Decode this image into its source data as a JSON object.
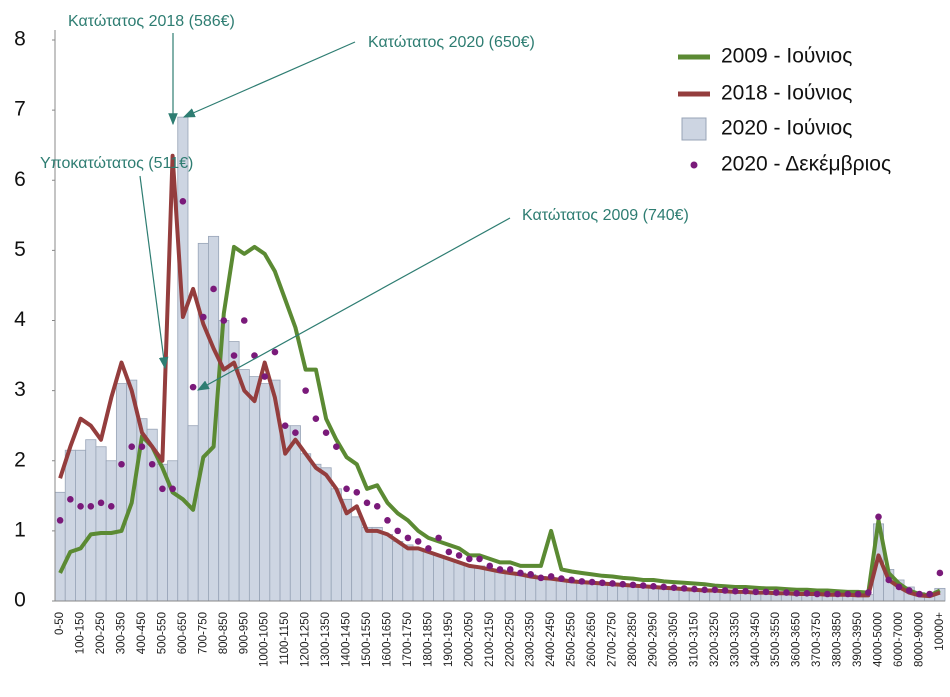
{
  "chart_data": {
    "type": "combo",
    "annotations": [
      "Κατώτατος 2018 (586€)",
      "Κατώτατος 2020 (650€)",
      "Υποκατώτατος (511€)",
      "Κατώτατος 2009 (740€)"
    ],
    "categories": [
      "0-50",
      null,
      "100-150",
      null,
      "200-250",
      null,
      "300-350",
      null,
      "400-450",
      null,
      "500-550",
      null,
      "600-650",
      null,
      "700-750",
      null,
      "800-850",
      null,
      "900-950",
      null,
      "1000-1050",
      null,
      "1100-1150",
      null,
      "1200-1250",
      null,
      "1300-1350",
      null,
      "1400-1450",
      null,
      "1500-1550",
      null,
      "1600-1650",
      null,
      "1700-1750",
      null,
      "1800-1850",
      null,
      "1900-1950",
      null,
      "2000-2050",
      null,
      "2100-2150",
      null,
      "2200-2250",
      null,
      "2300-2350",
      null,
      "2400-2450",
      null,
      "2500-2550",
      null,
      "2600-2650",
      null,
      "2700-2750",
      null,
      "2800-2850",
      null,
      "2900-2950",
      null,
      "3000-3050",
      null,
      "3100-3150",
      null,
      "3200-3250",
      null,
      "3300-3350",
      null,
      "3400-3450",
      null,
      "3500-3550",
      null,
      "3600-3650",
      null,
      "3700-3750",
      null,
      "3800-3850",
      null,
      "3900-3950",
      null,
      "4000-5000",
      null,
      "6000-7000",
      null,
      "8000-9000",
      null,
      "10000+"
    ],
    "series": [
      {
        "name": "2020 - Ιούνιος",
        "type": "bar",
        "color": "#cdd5e2",
        "values": [
          1.55,
          2.15,
          2.15,
          2.3,
          2.2,
          2.0,
          3.1,
          3.15,
          2.6,
          2.45,
          1.95,
          2.0,
          6.9,
          2.5,
          5.1,
          5.2,
          4.0,
          3.7,
          3.3,
          3.2,
          3.1,
          3.15,
          2.5,
          2.5,
          2.1,
          1.95,
          1.9,
          1.6,
          1.45,
          1.2,
          1.05,
          1.05,
          0.95,
          0.85,
          0.8,
          0.75,
          0.7,
          0.65,
          0.6,
          0.55,
          0.5,
          0.5,
          0.45,
          0.45,
          0.4,
          0.4,
          0.38,
          0.35,
          0.33,
          0.3,
          0.3,
          0.28,
          0.27,
          0.26,
          0.25,
          0.24,
          0.23,
          0.22,
          0.21,
          0.2,
          0.19,
          0.18,
          0.17,
          0.16,
          0.16,
          0.15,
          0.14,
          0.14,
          0.13,
          0.13,
          0.12,
          0.12,
          0.11,
          0.11,
          0.1,
          0.1,
          0.1,
          0.09,
          0.09,
          0.09,
          1.1,
          0.45,
          0.3,
          0.2,
          0.12,
          0.1,
          0.18
        ]
      },
      {
        "name": "2009 - Ιούνιος",
        "type": "line",
        "color": "#5b8a33",
        "values": [
          0.4,
          0.7,
          0.75,
          0.95,
          0.97,
          0.97,
          1.0,
          1.4,
          2.35,
          2.2,
          1.9,
          1.55,
          1.45,
          1.3,
          2.05,
          2.2,
          4.1,
          5.05,
          4.95,
          5.05,
          4.95,
          4.7,
          4.3,
          3.9,
          3.3,
          3.3,
          2.6,
          2.3,
          2.05,
          1.95,
          1.6,
          1.65,
          1.4,
          1.25,
          1.15,
          1.0,
          0.9,
          0.85,
          0.8,
          0.75,
          0.65,
          0.65,
          0.6,
          0.55,
          0.55,
          0.5,
          0.5,
          0.5,
          1.0,
          0.45,
          0.42,
          0.4,
          0.38,
          0.36,
          0.35,
          0.33,
          0.32,
          0.3,
          0.3,
          0.28,
          0.27,
          0.26,
          0.25,
          0.24,
          0.22,
          0.21,
          0.2,
          0.2,
          0.19,
          0.18,
          0.18,
          0.17,
          0.16,
          0.16,
          0.15,
          0.15,
          0.14,
          0.13,
          0.13,
          0.12,
          1.15,
          0.4,
          0.25,
          0.15,
          0.1,
          0.08,
          0.15
        ]
      },
      {
        "name": "2018 - Ιούνιος",
        "type": "line",
        "color": "#943d3d",
        "values": [
          1.75,
          2.2,
          2.6,
          2.5,
          2.3,
          2.9,
          3.4,
          3.0,
          2.4,
          2.2,
          2.0,
          6.35,
          4.05,
          4.45,
          3.95,
          3.6,
          3.3,
          3.4,
          3.0,
          2.85,
          3.4,
          2.9,
          2.1,
          2.3,
          2.1,
          1.9,
          1.8,
          1.6,
          1.25,
          1.35,
          1.0,
          1.0,
          0.95,
          0.85,
          0.75,
          0.75,
          0.7,
          0.65,
          0.6,
          0.55,
          0.5,
          0.48,
          0.45,
          0.42,
          0.4,
          0.38,
          0.35,
          0.33,
          0.32,
          0.3,
          0.28,
          0.27,
          0.26,
          0.25,
          0.24,
          0.23,
          0.22,
          0.21,
          0.2,
          0.19,
          0.18,
          0.17,
          0.16,
          0.15,
          0.15,
          0.14,
          0.13,
          0.13,
          0.12,
          0.12,
          0.11,
          0.11,
          0.1,
          0.1,
          0.1,
          0.09,
          0.09,
          0.09,
          0.08,
          0.08,
          0.65,
          0.3,
          0.2,
          0.12,
          0.08,
          0.07,
          0.12
        ]
      },
      {
        "name": "2020 - Δεκέμβριος",
        "type": "scatter",
        "color": "#7a1a7a",
        "values": [
          1.15,
          1.45,
          1.35,
          1.35,
          1.4,
          1.35,
          1.95,
          2.2,
          2.2,
          1.95,
          1.6,
          1.6,
          5.7,
          3.05,
          4.05,
          4.45,
          4.0,
          3.5,
          4.0,
          3.5,
          3.2,
          3.55,
          2.5,
          2.4,
          3.0,
          2.6,
          2.4,
          2.2,
          1.6,
          1.55,
          1.4,
          1.35,
          1.15,
          1.0,
          0.9,
          0.85,
          0.75,
          0.9,
          0.7,
          0.65,
          0.6,
          0.6,
          0.5,
          0.45,
          0.45,
          0.4,
          0.38,
          0.33,
          0.35,
          0.32,
          0.3,
          0.28,
          0.27,
          0.26,
          0.25,
          0.24,
          0.23,
          0.22,
          0.21,
          0.2,
          0.19,
          0.18,
          0.17,
          0.16,
          0.16,
          0.15,
          0.14,
          0.14,
          0.13,
          0.13,
          0.12,
          0.12,
          0.11,
          0.11,
          0.1,
          0.1,
          0.1,
          0.1,
          0.1,
          0.12,
          1.2,
          0.3,
          0.2,
          0.15,
          0.1,
          0.1,
          0.4
        ]
      }
    ],
    "ylim": [
      0,
      8
    ],
    "yticks": [
      0,
      1,
      2,
      3,
      4,
      5,
      6,
      7,
      8
    ],
    "grid": false,
    "legend": "upper right"
  }
}
